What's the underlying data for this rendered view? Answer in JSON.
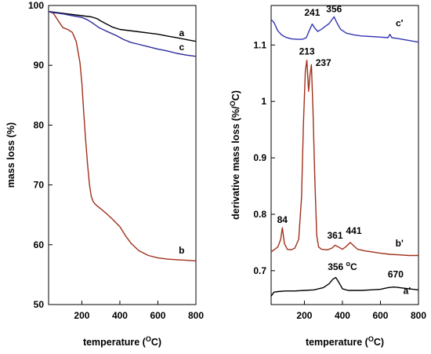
{
  "chart_data": [
    {
      "type": "line",
      "xlabel": "temperature (OC)",
      "ylabel": "mass loss (%)",
      "xlim": [
        25,
        800
      ],
      "ylim": [
        50,
        100
      ],
      "xticks": [
        200,
        400,
        600,
        800
      ],
      "yticks": [
        50,
        60,
        70,
        80,
        90,
        100
      ],
      "grid": false,
      "series": [
        {
          "name": "a",
          "color": "#000000",
          "x": [
            25,
            50,
            100,
            150,
            200,
            250,
            280,
            300,
            330,
            360,
            400,
            450,
            500,
            550,
            600,
            650,
            700,
            750,
            800
          ],
          "y": [
            99.0,
            98.9,
            98.7,
            98.5,
            98.3,
            98.1,
            97.8,
            97.4,
            96.9,
            96.4,
            96.0,
            95.8,
            95.6,
            95.4,
            95.2,
            94.9,
            94.6,
            94.3,
            94.0
          ]
        },
        {
          "name": "b",
          "color": "#a0301a",
          "x": [
            25,
            50,
            75,
            100,
            125,
            150,
            170,
            190,
            200,
            210,
            220,
            230,
            240,
            250,
            260,
            270,
            280,
            300,
            330,
            360,
            400,
            430,
            460,
            500,
            550,
            600,
            650,
            700,
            750,
            800
          ],
          "y": [
            99.0,
            98.7,
            97.5,
            96.3,
            96.0,
            95.5,
            94.0,
            90.5,
            87.0,
            82.0,
            77.5,
            73.5,
            70.0,
            68.0,
            67.2,
            66.8,
            66.5,
            66.0,
            65.2,
            64.3,
            63.0,
            61.5,
            60.2,
            59.0,
            58.2,
            57.8,
            57.6,
            57.5,
            57.4,
            57.3
          ]
        },
        {
          "name": "c",
          "color": "#2b2b9a",
          "x": [
            25,
            50,
            100,
            150,
            200,
            230,
            260,
            290,
            330,
            380,
            420,
            460,
            500,
            550,
            600,
            650,
            700,
            750,
            800
          ],
          "y": [
            99.0,
            98.8,
            98.6,
            98.3,
            98.0,
            97.6,
            97.0,
            96.3,
            95.7,
            95.0,
            94.3,
            93.8,
            93.5,
            93.1,
            92.7,
            92.4,
            92.0,
            91.7,
            91.5
          ]
        }
      ],
      "annotations": [
        {
          "text": "a",
          "x": 725,
          "y": 94.9
        },
        {
          "text": "c",
          "x": 725,
          "y": 92.5
        },
        {
          "text": "b",
          "x": 725,
          "y": 58.5
        }
      ]
    },
    {
      "type": "line",
      "xlabel": "temperature (OC)",
      "ylabel": "derivative mass loss (%/OC)",
      "xlim": [
        25,
        800
      ],
      "ylim": [
        0.64,
        1.17
      ],
      "xticks": [
        200,
        400,
        600,
        800
      ],
      "yticks": [
        0.7,
        0.8,
        0.9,
        1.0,
        1.1
      ],
      "grid": false,
      "series": [
        {
          "name": "c'",
          "color": "#3535b5",
          "x": [
            25,
            40,
            60,
            80,
            100,
            130,
            160,
            190,
            210,
            225,
            241,
            255,
            270,
            290,
            310,
            330,
            345,
            356,
            370,
            390,
            420,
            460,
            500,
            550,
            600,
            640,
            650,
            660,
            700,
            750,
            800
          ],
          "y": [
            1.145,
            1.14,
            1.125,
            1.118,
            1.114,
            1.111,
            1.11,
            1.11,
            1.113,
            1.125,
            1.137,
            1.13,
            1.124,
            1.128,
            1.133,
            1.138,
            1.145,
            1.15,
            1.14,
            1.128,
            1.121,
            1.118,
            1.116,
            1.115,
            1.114,
            1.113,
            1.119,
            1.113,
            1.111,
            1.108,
            1.105
          ]
        },
        {
          "name": "b'",
          "color": "#a0301a",
          "x": [
            25,
            40,
            60,
            75,
            84,
            95,
            110,
            130,
            150,
            170,
            185,
            195,
            205,
            213,
            222,
            230,
            237,
            245,
            255,
            265,
            275,
            290,
            320,
            345,
            361,
            380,
            400,
            420,
            441,
            460,
            480,
            520,
            560,
            600,
            650,
            700,
            750,
            800
          ],
          "y": [
            0.733,
            0.737,
            0.742,
            0.755,
            0.776,
            0.748,
            0.738,
            0.737,
            0.74,
            0.756,
            0.83,
            0.96,
            1.055,
            1.073,
            1.018,
            1.048,
            1.065,
            0.985,
            0.86,
            0.762,
            0.742,
            0.738,
            0.737,
            0.74,
            0.745,
            0.742,
            0.738,
            0.743,
            0.75,
            0.744,
            0.738,
            0.735,
            0.733,
            0.731,
            0.729,
            0.728,
            0.727,
            0.727
          ]
        },
        {
          "name": "a'",
          "color": "#000000",
          "x": [
            25,
            40,
            60,
            100,
            150,
            200,
            250,
            300,
            330,
            350,
            365,
            380,
            400,
            430,
            460,
            500,
            550,
            600,
            640,
            670,
            700,
            750,
            800
          ],
          "y": [
            0.655,
            0.662,
            0.663,
            0.664,
            0.664,
            0.665,
            0.666,
            0.67,
            0.677,
            0.685,
            0.688,
            0.68,
            0.668,
            0.665,
            0.665,
            0.665,
            0.666,
            0.667,
            0.67,
            0.671,
            0.67,
            0.668,
            0.666
          ]
        }
      ],
      "annotations": [
        {
          "text": "241",
          "x": 241,
          "y": 1.152
        },
        {
          "text": "356",
          "x": 356,
          "y": 1.158
        },
        {
          "text": "c'",
          "x": 700,
          "y": 1.133
        },
        {
          "text": "213",
          "x": 213,
          "y": 1.083
        },
        {
          "text": "237",
          "x": 300,
          "y": 1.063
        },
        {
          "text": "84",
          "x": 84,
          "y": 0.785
        },
        {
          "text": "361",
          "x": 361,
          "y": 0.757
        },
        {
          "text": "441",
          "x": 460,
          "y": 0.765
        },
        {
          "text": "b'",
          "x": 700,
          "y": 0.743
        },
        {
          "text": "356 °C",
          "x": 400,
          "y": 0.701
        },
        {
          "text": "670",
          "x": 680,
          "y": 0.688
        },
        {
          "text": "a'",
          "x": 740,
          "y": 0.659
        }
      ]
    }
  ]
}
